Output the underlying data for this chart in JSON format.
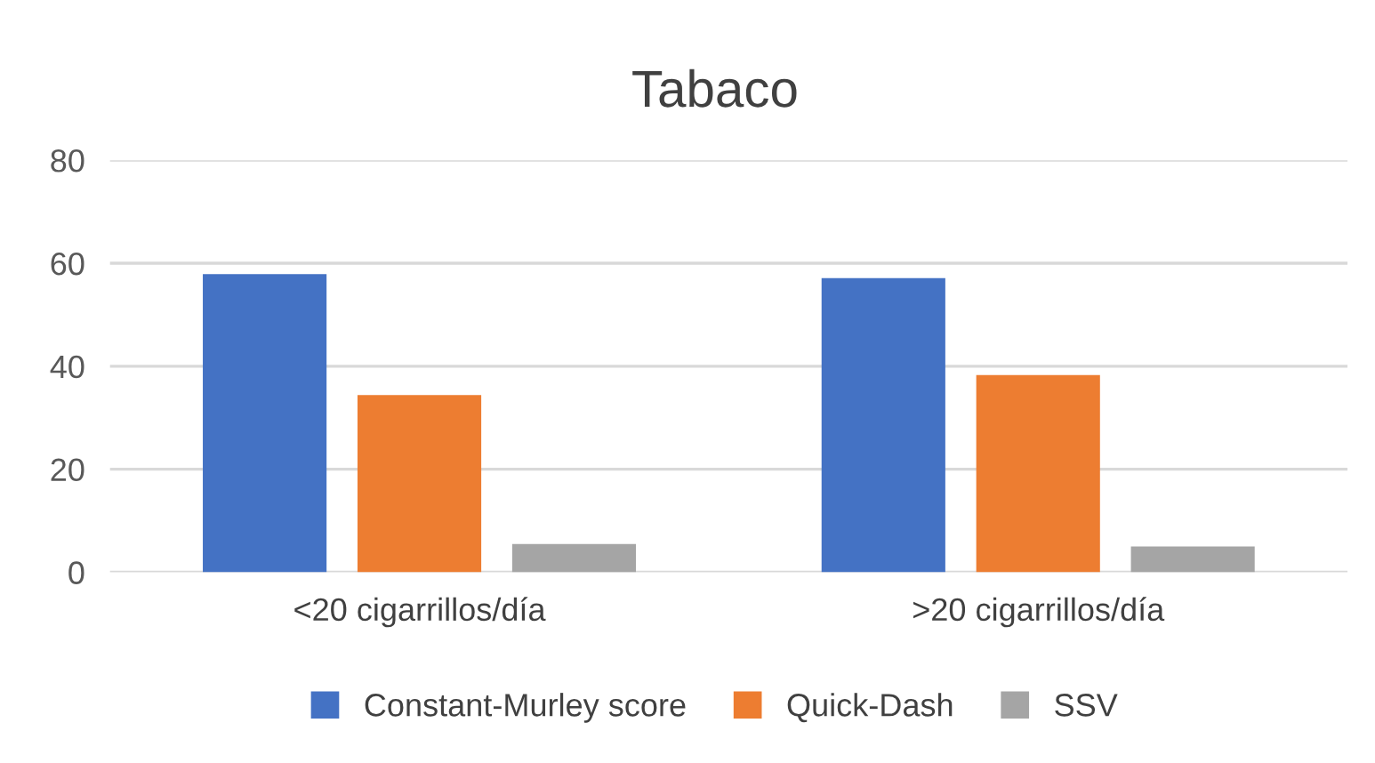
{
  "chart_data": {
    "type": "bar",
    "title": "Tabaco",
    "categories": [
      "<20 cigarrillos/día",
      ">20 cigarrillos/día"
    ],
    "series": [
      {
        "name": "Constant-Murley score",
        "color": "#4472c4",
        "values": [
          57.9,
          57.1
        ]
      },
      {
        "name": "Quick-Dash",
        "color": "#ed7d31",
        "values": [
          34.4,
          38.3
        ]
      },
      {
        "name": "SSV",
        "color": "#a5a5a5",
        "values": [
          5.5,
          5.0
        ]
      }
    ],
    "ylim": [
      0,
      80
    ],
    "yticks": [
      0,
      20,
      40,
      60,
      80
    ],
    "grid": "y",
    "legend": "bottom"
  }
}
